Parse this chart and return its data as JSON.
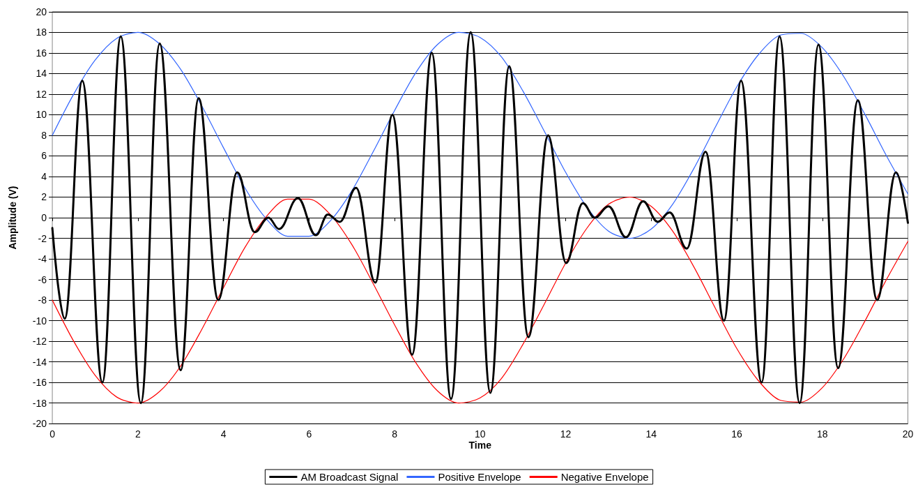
{
  "chart_data": {
    "type": "line",
    "xlabel": "Time",
    "ylabel": "Amplitude (V)",
    "xlim": [
      0,
      20
    ],
    "xticks": [
      0,
      2,
      4,
      6,
      8,
      10,
      12,
      14,
      16,
      18,
      20
    ],
    "ylim": [
      -20,
      20
    ],
    "yticks": [
      -20,
      -18,
      -16,
      -14,
      -12,
      -10,
      -8,
      -6,
      -4,
      -2,
      0,
      2,
      4,
      6,
      8,
      10,
      12,
      14,
      16,
      18,
      20
    ],
    "grid": "y",
    "legend": "bottom",
    "marker": "none",
    "line_style": "solid",
    "series": [
      {
        "name": "AM Broadcast Signal",
        "color": "#000000",
        "x": [
          0,
          0.29,
          0.7,
          1.17,
          1.6,
          2.07,
          2.51,
          3.0,
          3.42,
          3.88,
          4.32,
          4.73,
          5.05,
          5.3,
          5.74,
          6.16,
          6.44,
          6.72,
          7.1,
          7.55,
          7.95,
          8.41,
          8.87,
          9.32,
          9.78,
          10.24,
          10.68,
          11.13,
          11.59,
          12.01,
          12.4,
          12.68,
          13.0,
          13.41,
          13.81,
          14.15,
          14.43,
          14.83,
          15.27,
          15.7,
          16.1,
          16.58,
          17.0,
          17.47,
          17.91,
          18.37,
          18.83,
          19.28,
          19.72,
          20
        ],
        "values": [
          -1,
          -9.8,
          13.3,
          -16,
          17.6,
          -18,
          16.9,
          -14.8,
          11.6,
          -8,
          4.4,
          -1.4,
          0,
          -1.1,
          1.9,
          -1.7,
          0.3,
          -0.4,
          2.9,
          -6.3,
          10,
          -13.3,
          16,
          -17.6,
          18,
          -17,
          14.7,
          -11.6,
          8,
          -4.4,
          1.4,
          0,
          1.1,
          -1.9,
          1.6,
          -0.4,
          0.5,
          -3,
          6.4,
          -10,
          13.3,
          -16,
          17.6,
          -18,
          16.8,
          -14.6,
          11.4,
          -8,
          4.4,
          -0.5
        ]
      },
      {
        "name": "Positive Envelope",
        "color": "#3366ff",
        "x": [
          0,
          0.5,
          1,
          1.5,
          2,
          2.5,
          3,
          3.5,
          4,
          4.5,
          5,
          5.5,
          6,
          6.5,
          7,
          7.5,
          8,
          8.5,
          9,
          9.5,
          10,
          10.5,
          11,
          11.5,
          12,
          12.5,
          13,
          13.5,
          14,
          14.5,
          15,
          15.5,
          16,
          16.5,
          17,
          17.5,
          18,
          18.5,
          19,
          19.5,
          20
        ],
        "values": [
          8,
          12,
          15.3,
          17.4,
          18,
          16.9,
          14.4,
          10.8,
          6.8,
          2.9,
          -0.1,
          -1.8,
          -1.8,
          -0.3,
          2.6,
          6.4,
          10.4,
          14.1,
          16.8,
          18,
          17.5,
          15.6,
          12.3,
          8.4,
          4.4,
          1,
          -1.3,
          -2,
          -1.1,
          1.3,
          4.8,
          8.8,
          12.7,
          15.8,
          17.7,
          17.9,
          16.5,
          13.7,
          10,
          6,
          2.3
        ]
      },
      {
        "name": "Negative Envelope",
        "color": "#ff0000",
        "x": [
          0,
          0.5,
          1,
          1.5,
          2,
          2.5,
          3,
          3.5,
          4,
          4.5,
          5,
          5.5,
          6,
          6.5,
          7,
          7.5,
          8,
          8.5,
          9,
          9.5,
          10,
          10.5,
          11,
          11.5,
          12,
          12.5,
          13,
          13.5,
          14,
          14.5,
          15,
          15.5,
          16,
          16.5,
          17,
          17.5,
          18,
          18.5,
          19,
          19.5,
          20
        ],
        "values": [
          -8,
          -12,
          -15.3,
          -17.4,
          -18,
          -16.9,
          -14.4,
          -10.8,
          -6.8,
          -2.9,
          0.1,
          1.8,
          1.8,
          0.3,
          -2.6,
          -6.4,
          -10.4,
          -14.1,
          -16.8,
          -18,
          -17.5,
          -15.6,
          -12.3,
          -8.4,
          -4.4,
          -1,
          1.3,
          2,
          1.1,
          -1.3,
          -4.8,
          -8.8,
          -12.7,
          -15.8,
          -17.7,
          -17.9,
          -16.5,
          -13.7,
          -10,
          -6,
          -2.3
        ]
      }
    ]
  }
}
